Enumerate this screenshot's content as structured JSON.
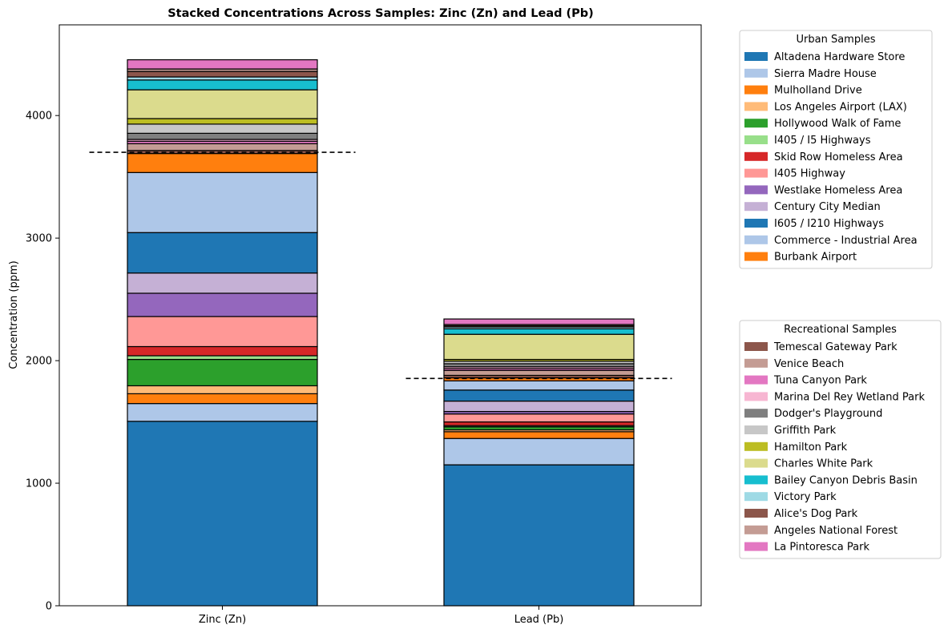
{
  "chart_data": {
    "type": "bar",
    "stacked": true,
    "title": "Stacked Concentrations Across Samples: Zinc (Zn) and Lead (Pb)",
    "xlabel": "",
    "ylabel": "Concentration (ppm)",
    "ylim": [
      0,
      4740
    ],
    "yticks": [
      0,
      1000,
      2000,
      3000,
      4000
    ],
    "categories": [
      "Zinc (Zn)",
      "Lead (Pb)"
    ],
    "reference_lines": [
      {
        "category": "Zinc (Zn)",
        "value": 3700,
        "style": "dashed"
      },
      {
        "category": "Lead (Pb)",
        "value": 1855,
        "style": "dashed"
      }
    ],
    "bar_edge_color": "#000000",
    "series": [
      {
        "name": "Altadena Hardware Store",
        "color": "#1f77b4",
        "values": [
          1505,
          1150
        ]
      },
      {
        "name": "Sierra Madre House",
        "color": "#aec7e8",
        "values": [
          145,
          215
        ]
      },
      {
        "name": "Mulholland Drive",
        "color": "#ff7f0e",
        "values": [
          80,
          55
        ]
      },
      {
        "name": "Los Angeles Airport (LAX)",
        "color": "#ffbb78",
        "values": [
          65,
          15
        ]
      },
      {
        "name": "Hollywood Walk of Fame",
        "color": "#2ca02c",
        "values": [
          215,
          25
        ]
      },
      {
        "name": "I405 / I5 Highways",
        "color": "#98df8a",
        "values": [
          30,
          10
        ]
      },
      {
        "name": "Skid Row Homeless Area",
        "color": "#d62728",
        "values": [
          75,
          30
        ]
      },
      {
        "name": "I405 Highway",
        "color": "#ff9896",
        "values": [
          245,
          65
        ]
      },
      {
        "name": "Westlake Homeless Area",
        "color": "#9467bd",
        "values": [
          190,
          20
        ]
      },
      {
        "name": "Century City Median",
        "color": "#c5b0d5",
        "values": [
          165,
          85
        ]
      },
      {
        "name": "I605 / I210 Highways",
        "color": "#1f77b4",
        "values": [
          330,
          90
        ]
      },
      {
        "name": "Commerce - Industrial Area",
        "color": "#aec7e8",
        "values": [
          490,
          75
        ]
      },
      {
        "name": "Burbank Airport",
        "color": "#ff7f0e",
        "values": [
          155,
          25
        ]
      },
      {
        "name": "Temescal Gateway Park",
        "color": "#8c564b",
        "values": [
          25,
          20
        ]
      },
      {
        "name": "Venice Beach",
        "color": "#c49c94",
        "values": [
          55,
          40
        ]
      },
      {
        "name": "Tuna Canyon Park",
        "color": "#e377c2",
        "values": [
          20,
          15
        ]
      },
      {
        "name": "Marina Del Rey Wetland Park",
        "color": "#f7b6d2",
        "values": [
          15,
          15
        ]
      },
      {
        "name": "Dodger's Playground",
        "color": "#7f7f7f",
        "values": [
          50,
          25
        ]
      },
      {
        "name": "Griffith Park",
        "color": "#c7c7c7",
        "values": [
          75,
          20
        ]
      },
      {
        "name": "Hamilton Park",
        "color": "#bcbd22",
        "values": [
          45,
          15
        ]
      },
      {
        "name": "Charles White Park",
        "color": "#dbdb8d",
        "values": [
          235,
          205
        ]
      },
      {
        "name": "Bailey Canyon Debris Basin",
        "color": "#17becf",
        "values": [
          80,
          45
        ]
      },
      {
        "name": "Victory Park",
        "color": "#9edae5",
        "values": [
          25,
          15
        ]
      },
      {
        "name": "Alice's Dog Park",
        "color": "#8c564b",
        "values": [
          45,
          10
        ]
      },
      {
        "name": "Angeles National Forest",
        "color": "#c49c94",
        "values": [
          20,
          10
        ]
      },
      {
        "name": "La Pintoresca Park",
        "color": "#e377c2",
        "values": [
          75,
          45
        ]
      }
    ],
    "legends": [
      {
        "title": "Urban Samples",
        "placement": "upper right, outside plot",
        "entries": [
          "Altadena Hardware Store",
          "Sierra Madre House",
          "Mulholland Drive",
          "Los Angeles Airport (LAX)",
          "Hollywood Walk of Fame",
          "I405 / I5 Highways",
          "Skid Row Homeless Area",
          "I405 Highway",
          "Westlake Homeless Area",
          "Century City Median",
          "I605 / I210 Highways",
          "Commerce - Industrial Area",
          "Burbank Airport"
        ]
      },
      {
        "title": "Recreational Samples",
        "placement": "lower right, outside plot",
        "entries": [
          "Temescal Gateway Park",
          "Venice Beach",
          "Tuna Canyon Park",
          "Marina Del Rey Wetland Park",
          "Dodger's Playground",
          "Griffith Park",
          "Hamilton Park",
          "Charles White Park",
          "Bailey Canyon Debris Basin",
          "Victory Park",
          "Alice's Dog Park",
          "Angeles National Forest",
          "La Pintoresca Park"
        ]
      }
    ],
    "grid": false
  }
}
